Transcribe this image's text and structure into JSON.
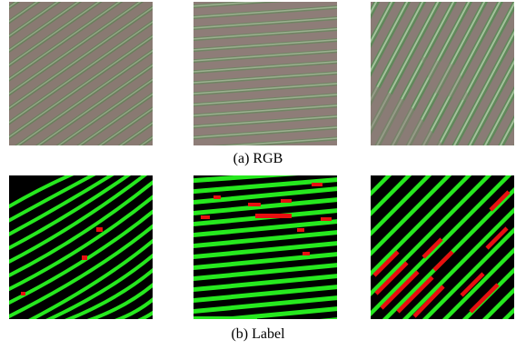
{
  "captions": {
    "rgb": "(a) RGB",
    "label": "(b) Label"
  },
  "colors": {
    "soil": "#8f7f77",
    "soil_dark": "#6f6862",
    "crop": "#5e8d57",
    "crop_light": "#a8c49a",
    "label_background": "#000000",
    "label_row": "#26e81e",
    "label_gap": "#e80f0f"
  }
}
